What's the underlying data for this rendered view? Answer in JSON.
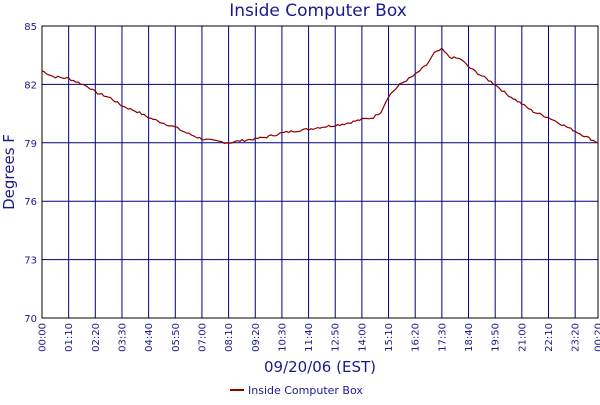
{
  "chart_data": {
    "type": "line",
    "title": "Inside Computer Box",
    "xlabel": "09/20/06 (EST)",
    "ylabel": "Degrees F",
    "ylim": [
      70,
      85
    ],
    "yticks": [
      "70",
      "73",
      "76",
      "79",
      "82",
      "85"
    ],
    "xticks": [
      "00:00",
      "01:10",
      "02:20",
      "03:30",
      "04:40",
      "05:50",
      "07:00",
      "08:10",
      "09:20",
      "10:30",
      "11:40",
      "12:50",
      "14:00",
      "15:10",
      "16:20",
      "17:30",
      "18:40",
      "19:50",
      "21:00",
      "22:10",
      "23:20",
      "00:20"
    ],
    "grid": true,
    "legend_position": "bottom",
    "series": [
      {
        "name": "Inside Computer Box",
        "color": "#8b0000",
        "x": [
          "00:00",
          "00:30",
          "01:10",
          "02:00",
          "02:20",
          "03:00",
          "03:30",
          "04:10",
          "04:40",
          "05:20",
          "05:50",
          "06:20",
          "07:00",
          "07:30",
          "08:10",
          "08:40",
          "09:20",
          "09:50",
          "10:30",
          "11:00",
          "11:40",
          "12:10",
          "12:50",
          "13:20",
          "14:00",
          "14:30",
          "14:50",
          "15:10",
          "15:40",
          "16:20",
          "16:50",
          "17:10",
          "17:30",
          "17:50",
          "18:20",
          "18:40",
          "19:10",
          "19:50",
          "20:20",
          "21:00",
          "21:30",
          "22:10",
          "22:40",
          "23:20",
          "23:50",
          "00:20"
        ],
        "y": [
          82.7,
          82.4,
          82.3,
          81.9,
          81.6,
          81.3,
          80.9,
          80.6,
          80.3,
          80.0,
          79.8,
          79.5,
          79.2,
          79.1,
          79.0,
          79.1,
          79.2,
          79.3,
          79.5,
          79.6,
          79.7,
          79.8,
          79.9,
          80.0,
          80.2,
          80.3,
          80.6,
          81.4,
          82.0,
          82.5,
          83.0,
          83.6,
          83.8,
          83.4,
          83.3,
          82.9,
          82.5,
          82.0,
          81.5,
          81.0,
          80.6,
          80.3,
          80.0,
          79.6,
          79.3,
          79.0
        ]
      }
    ]
  }
}
